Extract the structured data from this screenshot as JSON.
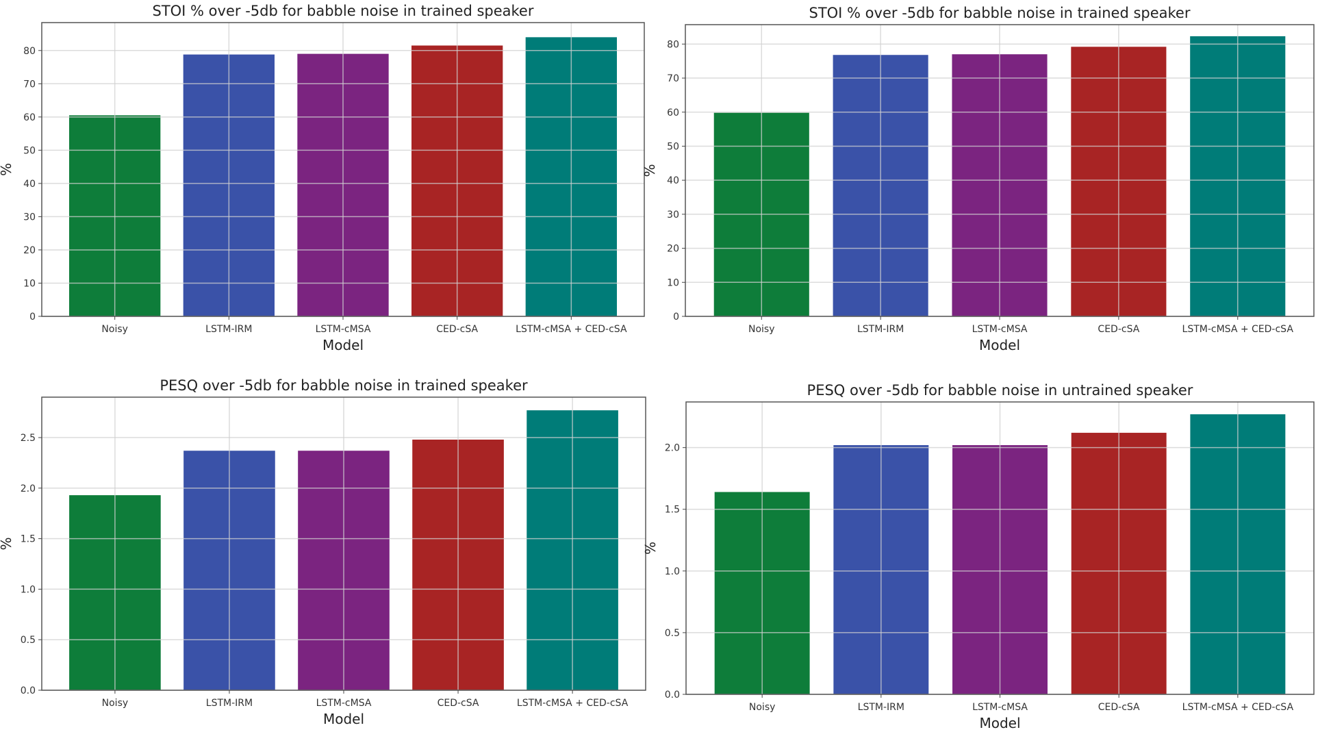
{
  "chart_data": [
    {
      "type": "bar",
      "title": "STOI % over -5db for babble noise in trained speaker",
      "xlabel": "Model",
      "ylabel": "%",
      "categories": [
        "Noisy",
        "LSTM-IRM",
        "LSTM-cMSA",
        "CED-cSA",
        "LSTM-cMSA + CED-cSA"
      ],
      "values": [
        60.5,
        78.8,
        79.0,
        81.5,
        84.0
      ],
      "colors": [
        "#0e7d3a",
        "#3a52a8",
        "#7b2480",
        "#a82424",
        "#007c78"
      ],
      "yticks": [
        0,
        10,
        20,
        30,
        40,
        50,
        60,
        70,
        80
      ],
      "ytick_labels": [
        "0",
        "10",
        "20",
        "30",
        "40",
        "50",
        "60",
        "70",
        "80"
      ],
      "ylim": [
        0,
        88.4
      ],
      "grid": true
    },
    {
      "type": "bar",
      "title": "STOI % over -5db for babble noise in trained speaker",
      "xlabel": "Model",
      "ylabel": "%",
      "categories": [
        "Noisy",
        "LSTM-IRM",
        "LSTM-cMSA",
        "CED-cSA",
        "LSTM-cMSA + CED-cSA"
      ],
      "values": [
        59.8,
        76.8,
        77.0,
        79.2,
        82.3
      ],
      "colors": [
        "#0e7d3a",
        "#3a52a8",
        "#7b2480",
        "#a82424",
        "#007c78"
      ],
      "yticks": [
        0,
        10,
        20,
        30,
        40,
        50,
        60,
        70,
        80
      ],
      "ytick_labels": [
        "0",
        "10",
        "20",
        "30",
        "40",
        "50",
        "60",
        "70",
        "80"
      ],
      "ylim": [
        0,
        85.7
      ],
      "grid": true
    },
    {
      "type": "bar",
      "title": "PESQ over -5db for babble noise in trained speaker",
      "xlabel": "Model",
      "ylabel": "%",
      "categories": [
        "Noisy",
        "LSTM-IRM",
        "LSTM-cMSA",
        "CED-cSA",
        "LSTM-cMSA + CED-cSA"
      ],
      "values": [
        1.93,
        2.37,
        2.37,
        2.48,
        2.77
      ],
      "colors": [
        "#0e7d3a",
        "#3a52a8",
        "#7b2480",
        "#a82424",
        "#007c78"
      ],
      "yticks": [
        0,
        0.5,
        1.0,
        1.5,
        2.0,
        2.5
      ],
      "ytick_labels": [
        "0.0",
        "0.5",
        "1.0",
        "1.5",
        "2.0",
        "2.5"
      ],
      "ylim": [
        0,
        2.9
      ],
      "grid": true
    },
    {
      "type": "bar",
      "title": "PESQ over -5db for babble noise in untrained speaker",
      "xlabel": "Model",
      "ylabel": "%",
      "categories": [
        "Noisy",
        "LSTM-IRM",
        "LSTM-cMSA",
        "CED-cSA",
        "LSTM-cMSA + CED-cSA"
      ],
      "values": [
        1.64,
        2.02,
        2.02,
        2.12,
        2.27
      ],
      "colors": [
        "#0e7d3a",
        "#3a52a8",
        "#7b2480",
        "#a82424",
        "#007c78"
      ],
      "yticks": [
        0,
        0.5,
        1.0,
        1.5,
        2.0
      ],
      "ytick_labels": [
        "0.0",
        "0.5",
        "1.0",
        "1.5",
        "2.0"
      ],
      "ylim": [
        0,
        2.37
      ],
      "grid": true
    }
  ]
}
